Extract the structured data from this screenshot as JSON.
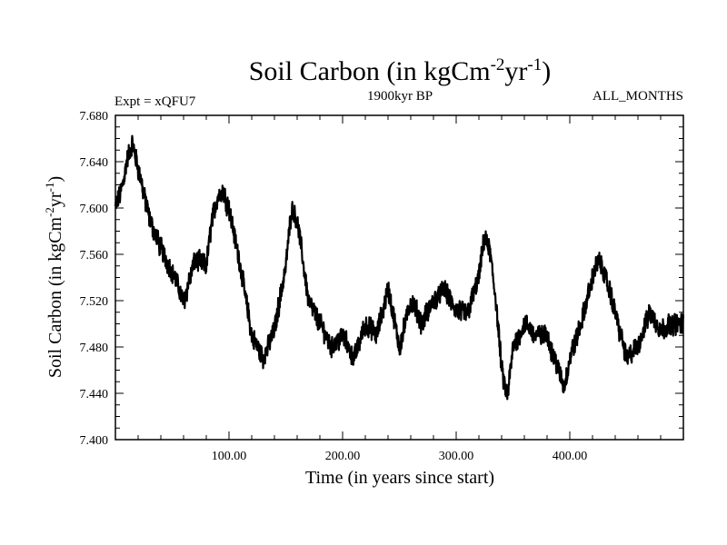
{
  "chart_data": {
    "type": "line",
    "title": {
      "text": "Soil Carbon (in kgCm",
      "sup1": "-2",
      "mid": "yr",
      "sup2": "-1",
      "end": ")"
    },
    "subtitle": "1900kyr BP",
    "left_label": "Expt = xQFU7",
    "right_label": "ALL_MONTHS",
    "xlabel": "Time (in years since start)",
    "ylabel": {
      "text": "Soil Carbon (in kgCm",
      "sup1": "-2",
      "mid": "yr",
      "sup2": "-1",
      "end": ")"
    },
    "xlim": [
      0,
      500
    ],
    "ylim": [
      7.4,
      7.68
    ],
    "x_ticks": [
      100,
      200,
      300,
      400
    ],
    "x_tick_labels": [
      "100.00",
      "200.00",
      "300.00",
      "400.00"
    ],
    "y_ticks": [
      7.4,
      7.44,
      7.48,
      7.52,
      7.56,
      7.6,
      7.64,
      7.68
    ],
    "y_tick_labels": [
      "7.400",
      "7.440",
      "7.480",
      "7.520",
      "7.560",
      "7.600",
      "7.640",
      "7.680"
    ],
    "line_color": "#000000",
    "series": [
      {
        "name": "Soil Carbon",
        "x": [
          0,
          5,
          10,
          15,
          20,
          30,
          40,
          50,
          60,
          70,
          80,
          85,
          90,
          95,
          100,
          110,
          120,
          130,
          140,
          150,
          155,
          160,
          170,
          180,
          190,
          200,
          210,
          220,
          230,
          240,
          250,
          260,
          270,
          280,
          290,
          300,
          310,
          320,
          325,
          330,
          335,
          340,
          345,
          350,
          360,
          370,
          380,
          390,
          395,
          400,
          410,
          420,
          425,
          430,
          440,
          450,
          460,
          470,
          480,
          490,
          500
        ],
        "y": [
          7.6,
          7.615,
          7.64,
          7.655,
          7.635,
          7.59,
          7.565,
          7.545,
          7.52,
          7.555,
          7.55,
          7.59,
          7.61,
          7.615,
          7.6,
          7.55,
          7.49,
          7.47,
          7.495,
          7.55,
          7.6,
          7.59,
          7.52,
          7.5,
          7.48,
          7.49,
          7.47,
          7.5,
          7.49,
          7.53,
          7.48,
          7.52,
          7.5,
          7.52,
          7.53,
          7.51,
          7.51,
          7.54,
          7.575,
          7.56,
          7.52,
          7.46,
          7.435,
          7.48,
          7.5,
          7.49,
          7.49,
          7.46,
          7.445,
          7.47,
          7.5,
          7.54,
          7.555,
          7.545,
          7.51,
          7.47,
          7.48,
          7.51,
          7.495,
          7.5,
          7.5
        ]
      }
    ]
  }
}
